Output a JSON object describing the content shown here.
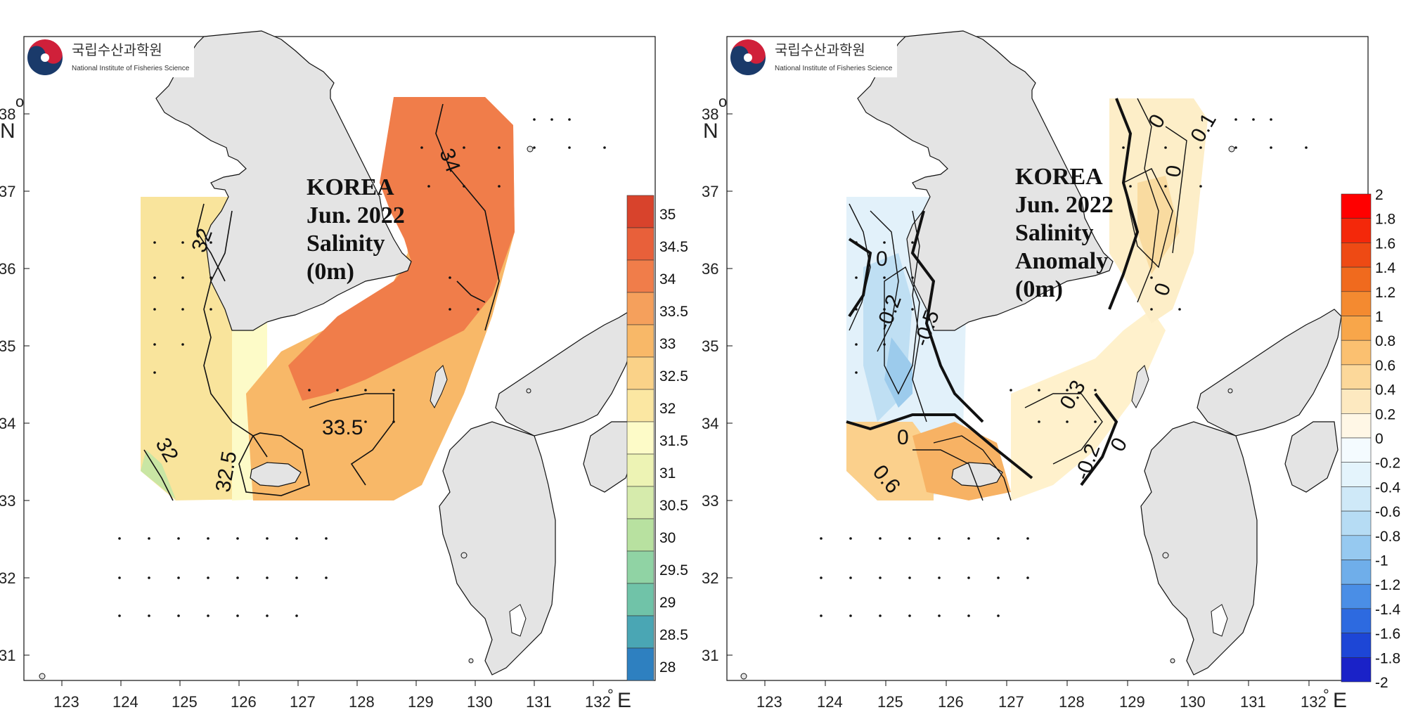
{
  "logo": {
    "korean": "국립수산과학원",
    "english": "National Institute of Fisheries Science"
  },
  "axes": {
    "lon_ticks": [
      "123",
      "124",
      "125",
      "126",
      "127",
      "128",
      "129",
      "130",
      "131",
      "132"
    ],
    "lon_unit_mark": "°",
    "lon_unit": "E",
    "lat_ticks": [
      "31",
      "32",
      "33",
      "34",
      "35",
      "36",
      "37",
      "38"
    ],
    "lat_unit_mark": "o",
    "lat_unit": "N"
  },
  "left_panel": {
    "title_lines": [
      "KOREA",
      "Jun. 2022",
      "Salinity",
      "(0m)"
    ],
    "contour_labels": [
      "34",
      "32",
      "32",
      "32.5",
      "33.5"
    ],
    "colorbar_labels": [
      "35",
      "34.5",
      "34",
      "33.5",
      "33",
      "32.5",
      "32",
      "31.5",
      "31",
      "30.5",
      "30",
      "29.5",
      "29",
      "28.5",
      "28"
    ],
    "colors": {
      "high": "#f07d4a",
      "mid": "#f8b868",
      "low": "#f9e49c",
      "coast": "#fdfbc8"
    }
  },
  "right_panel": {
    "title_lines": [
      "KOREA",
      "Jun. 2022",
      "Salinity",
      "Anomaly",
      "(0m)"
    ],
    "contour_labels": [
      "0",
      "0.1",
      "0",
      "0",
      "0",
      "-0.2",
      "-0.5",
      "0",
      "0.3",
      "-0.2",
      "0",
      "0.6"
    ],
    "colorbar_labels": [
      "2",
      "1.8",
      "1.6",
      "1.4",
      "1.2",
      "1",
      "0.8",
      "0.6",
      "0.4",
      "0.2",
      "0",
      "-0.2",
      "-0.4",
      "-0.6",
      "-0.8",
      "-1",
      "-1.2",
      "-1.4",
      "-1.6",
      "-1.8",
      "-2"
    ],
    "colors": {
      "positive": "#fbd08c",
      "negative": "#cfe6f6",
      "neutral": "#fffbe8"
    }
  }
}
